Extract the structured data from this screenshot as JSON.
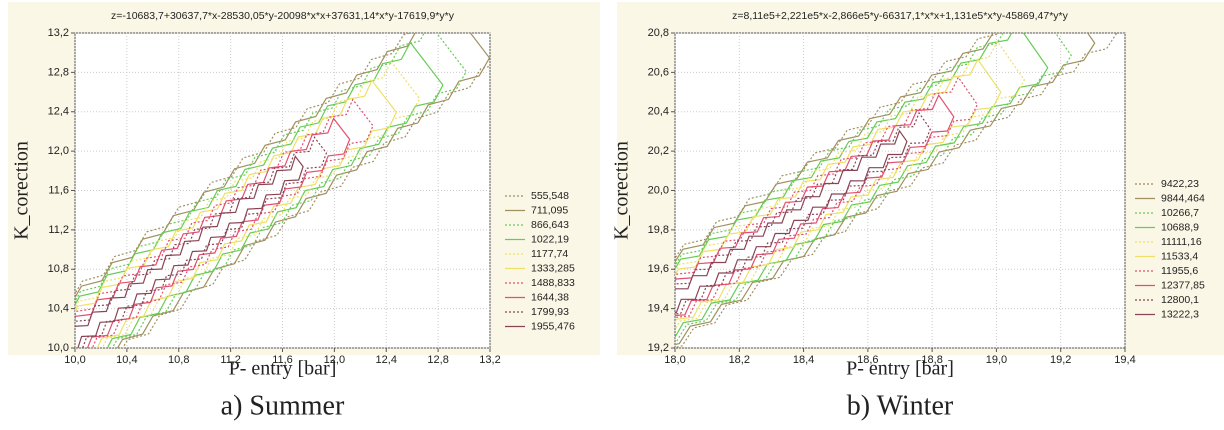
{
  "chart_data": [
    {
      "type": "contour",
      "title": "z=-10683,7+30637,7*x-28530,05*y-20098*x*x+37631,14*x*y-17619,9*y*y",
      "xlabel": "P- entry [bar]",
      "ylabel": "K_corection",
      "caption": "a) Summer",
      "xlim": [
        10.0,
        13.2
      ],
      "ylim": [
        10.0,
        13.2
      ],
      "grid": true,
      "xticks": [
        {
          "value": 10.0,
          "label": "10,0"
        },
        {
          "value": 10.4,
          "label": "10,4"
        },
        {
          "value": 10.8,
          "label": "10,8"
        },
        {
          "value": 11.2,
          "label": "11,2"
        },
        {
          "value": 11.6,
          "label": "11,6"
        },
        {
          "value": 12.0,
          "label": "12,0"
        },
        {
          "value": 12.4,
          "label": "12,4"
        },
        {
          "value": 12.8,
          "label": "12,8"
        },
        {
          "value": 13.2,
          "label": "13,2"
        }
      ],
      "yticks": [
        {
          "value": 10.0,
          "label": "10,0"
        },
        {
          "value": 10.4,
          "label": "10,4"
        },
        {
          "value": 10.8,
          "label": "10,8"
        },
        {
          "value": 11.2,
          "label": "11,2"
        },
        {
          "value": 11.6,
          "label": "11,6"
        },
        {
          "value": 12.0,
          "label": "12,0"
        },
        {
          "value": 12.4,
          "label": "12,4"
        },
        {
          "value": 12.8,
          "label": "12,8"
        },
        {
          "value": 13.2,
          "label": "13,2"
        }
      ],
      "levels": [
        {
          "value": 555.548,
          "label": "555,548",
          "color": "#a09060",
          "dashed": true
        },
        {
          "value": 711.095,
          "label": "711,095",
          "color": "#a09060",
          "dashed": false
        },
        {
          "value": 866.643,
          "label": "866,643",
          "color": "#66cc55",
          "dashed": true
        },
        {
          "value": 1022.19,
          "label": "1022,19",
          "color": "#66cc55",
          "dashed": false
        },
        {
          "value": 1177.74,
          "label": "1177,74",
          "color": "#eee066",
          "dashed": true
        },
        {
          "value": 1333.285,
          "label": "1333,285",
          "color": "#eee066",
          "dashed": false
        },
        {
          "value": 1488.833,
          "label": "1488,833",
          "color": "#e05070",
          "dashed": true
        },
        {
          "value": 1644.38,
          "label": "1644,38",
          "color": "#e05070",
          "dashed": false
        },
        {
          "value": 1799.93,
          "label": "1799,93",
          "color": "#884455",
          "dashed": true
        },
        {
          "value": 1955.476,
          "label": "1955,476",
          "color": "#884455",
          "dashed": false
        }
      ]
    },
    {
      "type": "contour",
      "title": "z=8,11e5+2,221e5*x-2,866e5*y-66317,1*x*x+1,131e5*x*y-45869,47*y*y",
      "xlabel": "P- entry [bar]",
      "ylabel": "K_corection",
      "caption": "b) Winter",
      "xlim": [
        18.0,
        19.4
      ],
      "ylim": [
        19.2,
        20.8
      ],
      "grid": true,
      "xticks": [
        {
          "value": 18.0,
          "label": "18,0"
        },
        {
          "value": 18.2,
          "label": "18,2"
        },
        {
          "value": 18.4,
          "label": "18,4"
        },
        {
          "value": 18.6,
          "label": "18,6"
        },
        {
          "value": 18.8,
          "label": "18,8"
        },
        {
          "value": 19.0,
          "label": "19,0"
        },
        {
          "value": 19.2,
          "label": "19,2"
        },
        {
          "value": 19.4,
          "label": "19,4"
        }
      ],
      "yticks": [
        {
          "value": 19.2,
          "label": "19,2"
        },
        {
          "value": 19.4,
          "label": "19,4"
        },
        {
          "value": 19.6,
          "label": "19,6"
        },
        {
          "value": 19.8,
          "label": "19,8"
        },
        {
          "value": 20.0,
          "label": "20,0"
        },
        {
          "value": 20.2,
          "label": "20,2"
        },
        {
          "value": 20.4,
          "label": "20,4"
        },
        {
          "value": 20.6,
          "label": "20,6"
        },
        {
          "value": 20.8,
          "label": "20,8"
        }
      ],
      "levels": [
        {
          "value": 9422.23,
          "label": "9422,23",
          "color": "#a09060",
          "dashed": true
        },
        {
          "value": 9844.464,
          "label": "9844,464",
          "color": "#a09060",
          "dashed": false
        },
        {
          "value": 10266.7,
          "label": "10266,7",
          "color": "#66cc55",
          "dashed": true
        },
        {
          "value": 10688.9,
          "label": "10688,9",
          "color": "#66cc55",
          "dashed": false
        },
        {
          "value": 11111.16,
          "label": "11111,16",
          "color": "#eee066",
          "dashed": true
        },
        {
          "value": 11533.4,
          "label": "11533,4",
          "color": "#eee066",
          "dashed": false
        },
        {
          "value": 11955.6,
          "label": "11955,6",
          "color": "#e05070",
          "dashed": true
        },
        {
          "value": 12377.85,
          "label": "12377,85",
          "color": "#e05070",
          "dashed": false
        },
        {
          "value": 12800.1,
          "label": "12800,1",
          "color": "#884455",
          "dashed": true
        },
        {
          "value": 13222.3,
          "label": "13222,3",
          "color": "#884455",
          "dashed": false
        }
      ]
    }
  ]
}
